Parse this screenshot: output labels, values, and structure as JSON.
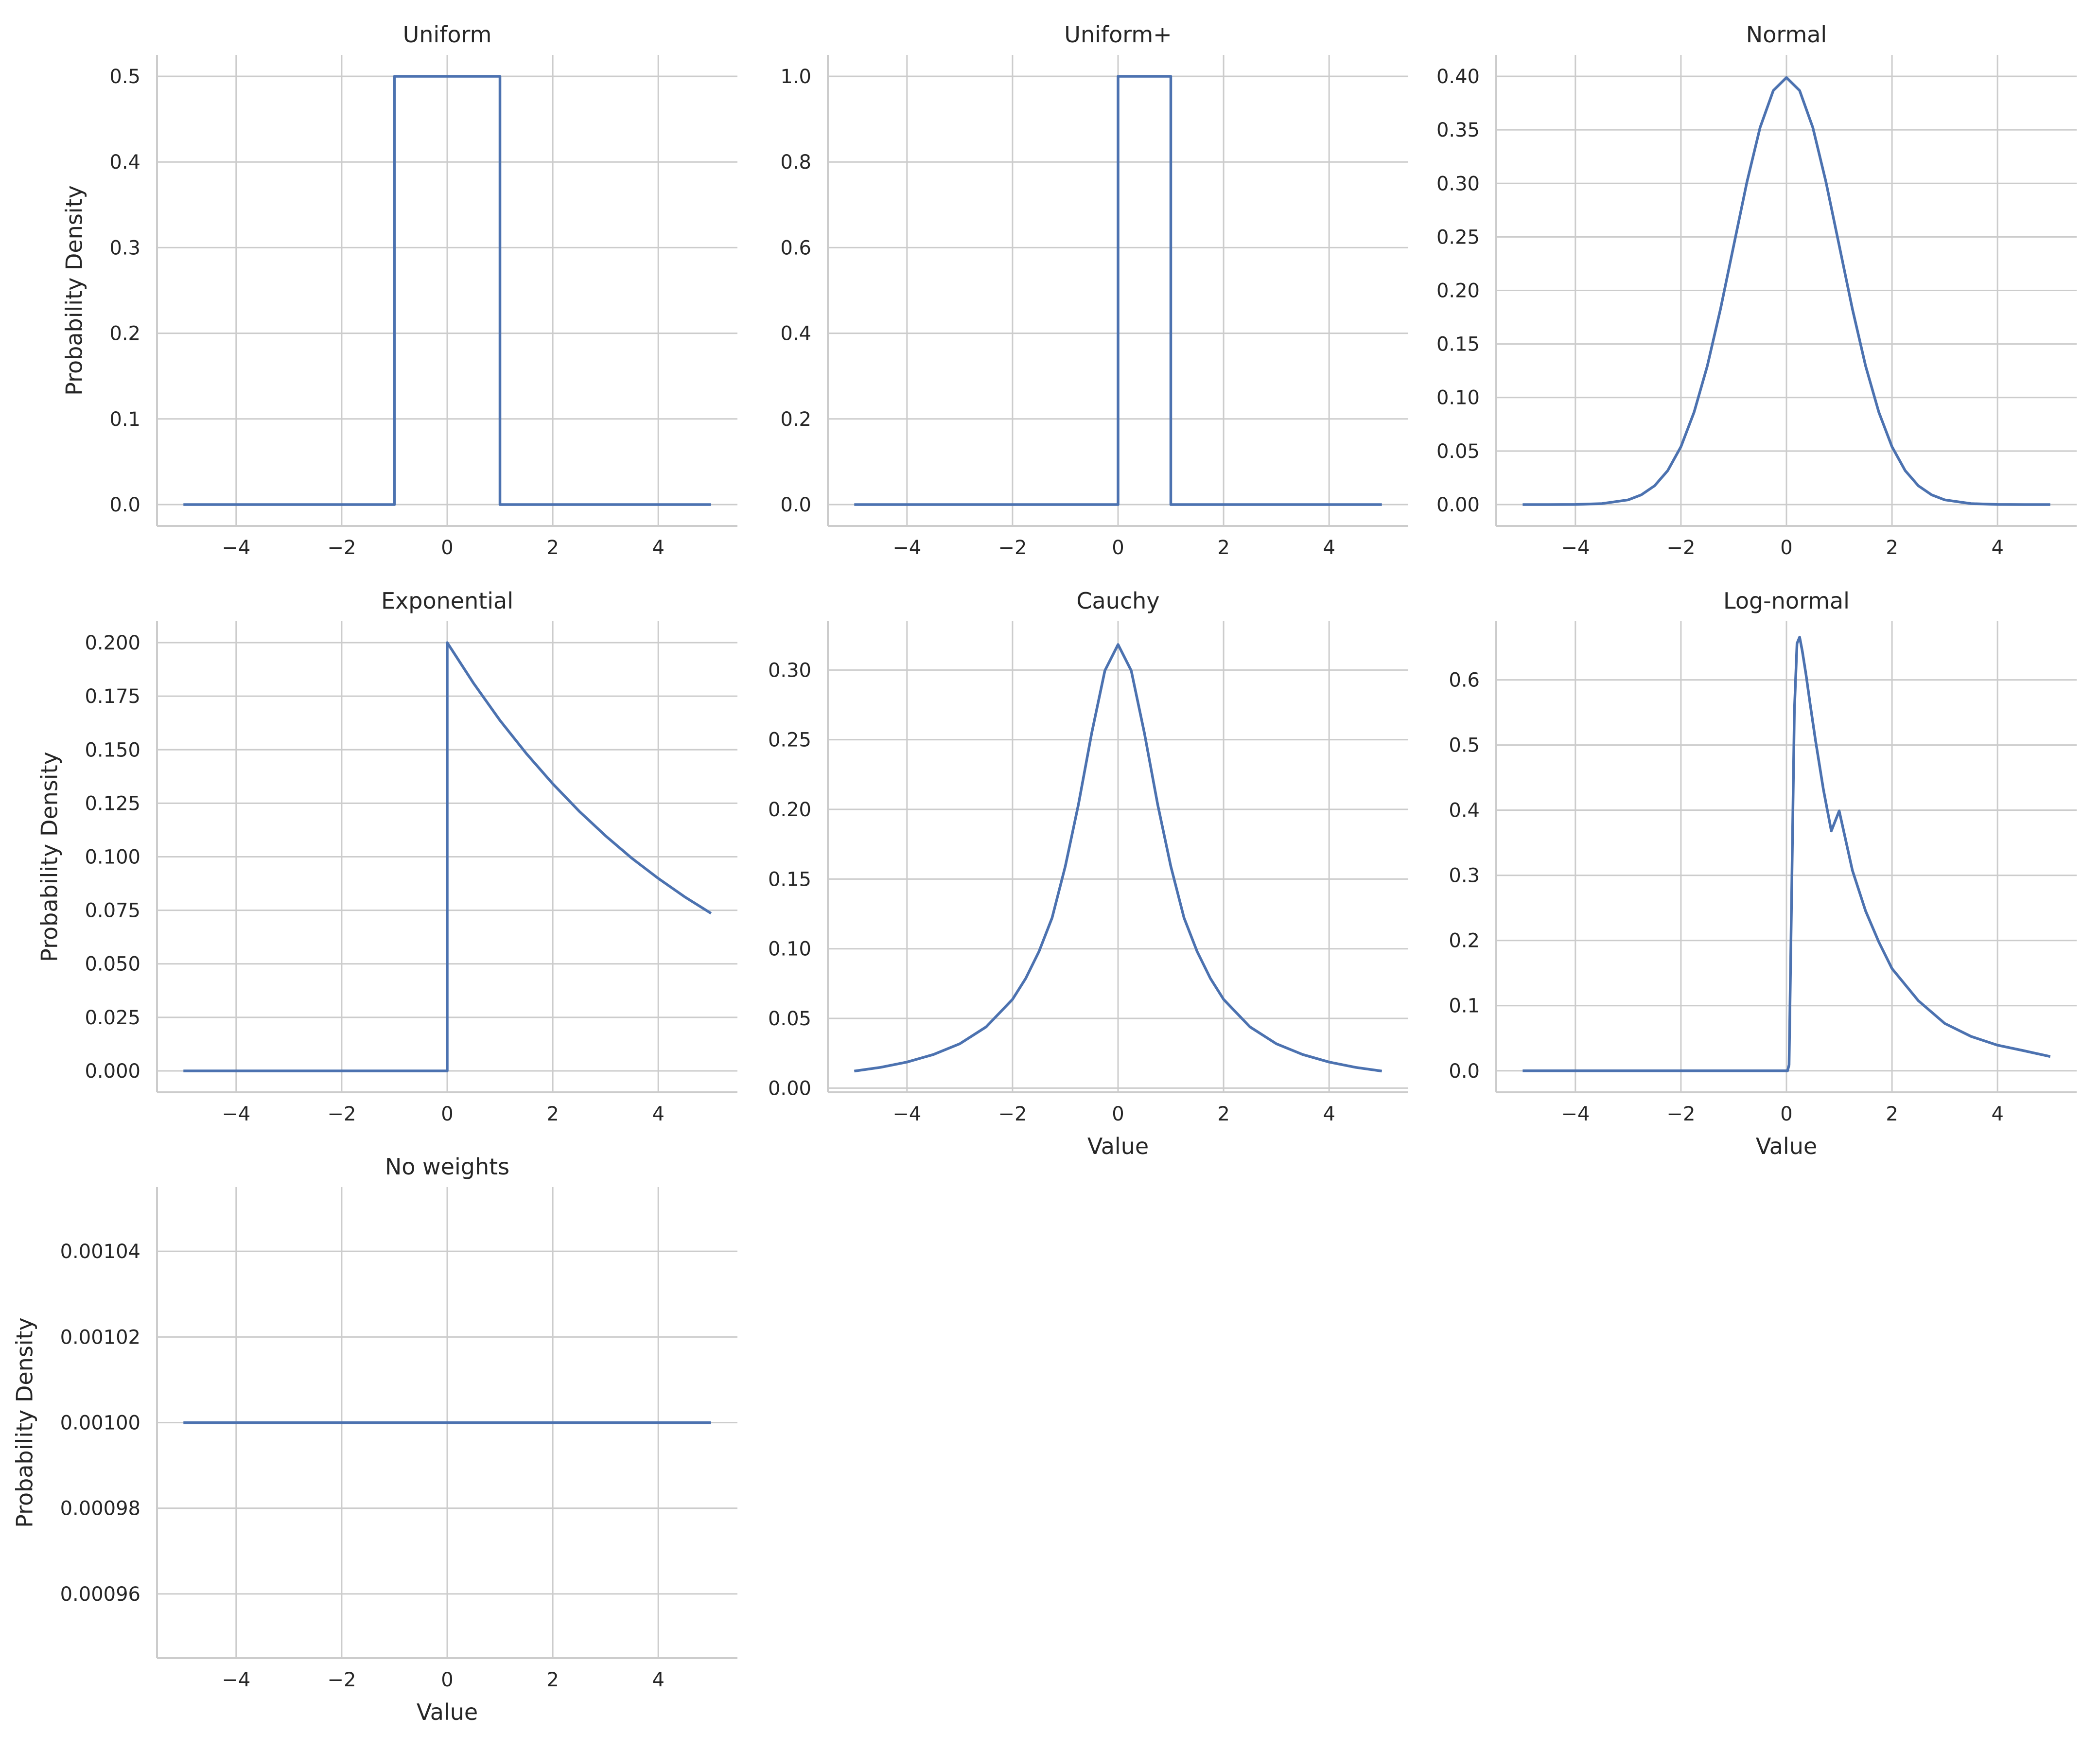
{
  "figure": {
    "line_color": "#4c72b0",
    "grid_color": "#cccccc",
    "background": "#ffffff"
  },
  "chart_data": [
    {
      "type": "line",
      "title": "Uniform",
      "xlabel": "",
      "ylabel": "Probability Density",
      "xlim": [
        -5.5,
        5.5
      ],
      "ylim": [
        -0.025,
        0.525
      ],
      "xticks": [
        -4,
        -2,
        0,
        2,
        4
      ],
      "xticklabels": [
        "−4",
        "−2",
        "0",
        "2",
        "4"
      ],
      "yticks": [
        0.0,
        0.1,
        0.2,
        0.3,
        0.4,
        0.5
      ],
      "yticklabels": [
        "0.0",
        "0.1",
        "0.2",
        "0.3",
        "0.4",
        "0.5"
      ],
      "grid": true,
      "series": [
        {
          "x": [
            -5,
            -1,
            -1,
            1,
            1,
            5
          ],
          "y": [
            0,
            0,
            0.5,
            0.5,
            0,
            0
          ]
        }
      ]
    },
    {
      "type": "line",
      "title": "Uniform+",
      "xlabel": "",
      "ylabel": "",
      "xlim": [
        -5.5,
        5.5
      ],
      "ylim": [
        -0.05,
        1.05
      ],
      "xticks": [
        -4,
        -2,
        0,
        2,
        4
      ],
      "xticklabels": [
        "−4",
        "−2",
        "0",
        "2",
        "4"
      ],
      "yticks": [
        0.0,
        0.2,
        0.4,
        0.6,
        0.8,
        1.0
      ],
      "yticklabels": [
        "0.0",
        "0.2",
        "0.4",
        "0.6",
        "0.8",
        "1.0"
      ],
      "grid": true,
      "series": [
        {
          "x": [
            -5,
            0,
            0,
            1,
            1,
            5
          ],
          "y": [
            0,
            0,
            1.0,
            1.0,
            0,
            0
          ]
        }
      ]
    },
    {
      "type": "line",
      "title": "Normal",
      "xlabel": "",
      "ylabel": "",
      "xlim": [
        -5.5,
        5.5
      ],
      "ylim": [
        -0.02,
        0.42
      ],
      "xticks": [
        -4,
        -2,
        0,
        2,
        4
      ],
      "xticklabels": [
        "−4",
        "−2",
        "0",
        "2",
        "4"
      ],
      "yticks": [
        0.0,
        0.05,
        0.1,
        0.15,
        0.2,
        0.25,
        0.3,
        0.35,
        0.4
      ],
      "yticklabels": [
        "0.00",
        "0.05",
        "0.10",
        "0.15",
        "0.20",
        "0.25",
        "0.30",
        "0.35",
        "0.40"
      ],
      "grid": true,
      "series": [
        {
          "x": [
            -5,
            -4.5,
            -4,
            -3.5,
            -3,
            -2.75,
            -2.5,
            -2.25,
            -2,
            -1.75,
            -1.5,
            -1.25,
            -1,
            -0.75,
            -0.5,
            -0.25,
            0,
            0.25,
            0.5,
            0.75,
            1,
            1.25,
            1.5,
            1.75,
            2,
            2.25,
            2.5,
            2.75,
            3,
            3.5,
            4,
            4.5,
            5
          ],
          "y": [
            0.0,
            0.0,
            0.0001,
            0.0009,
            0.0044,
            0.0091,
            0.0175,
            0.0317,
            0.054,
            0.0863,
            0.1295,
            0.1826,
            0.242,
            0.3011,
            0.3521,
            0.3867,
            0.3989,
            0.3867,
            0.3521,
            0.3011,
            0.242,
            0.1826,
            0.1295,
            0.0863,
            0.054,
            0.0317,
            0.0175,
            0.0091,
            0.0044,
            0.0009,
            0.0001,
            0.0,
            0.0
          ]
        }
      ]
    },
    {
      "type": "line",
      "title": "Exponential",
      "xlabel": "",
      "ylabel": "Probability Density",
      "xlim": [
        -5.5,
        5.5
      ],
      "ylim": [
        -0.01,
        0.21
      ],
      "xticks": [
        -4,
        -2,
        0,
        2,
        4
      ],
      "xticklabels": [
        "−4",
        "−2",
        "0",
        "2",
        "4"
      ],
      "yticks": [
        0.0,
        0.025,
        0.05,
        0.075,
        0.1,
        0.125,
        0.15,
        0.175,
        0.2
      ],
      "yticklabels": [
        "0.000",
        "0.025",
        "0.050",
        "0.075",
        "0.100",
        "0.125",
        "0.150",
        "0.175",
        "0.200"
      ],
      "grid": true,
      "series": [
        {
          "x": [
            -5,
            0,
            0,
            0.5,
            1,
            1.5,
            2,
            2.5,
            3,
            3.5,
            4,
            4.5,
            5
          ],
          "y": [
            0,
            0,
            0.2,
            0.181,
            0.1637,
            0.1482,
            0.1341,
            0.1213,
            0.1098,
            0.0993,
            0.0899,
            0.0813,
            0.0736
          ]
        }
      ]
    },
    {
      "type": "line",
      "title": "Cauchy",
      "xlabel": "Value",
      "ylabel": "",
      "xlim": [
        -5.5,
        5.5
      ],
      "ylim": [
        -0.003,
        0.335
      ],
      "xticks": [
        -4,
        -2,
        0,
        2,
        4
      ],
      "xticklabels": [
        "−4",
        "−2",
        "0",
        "2",
        "4"
      ],
      "yticks": [
        0.0,
        0.05,
        0.1,
        0.15,
        0.2,
        0.25,
        0.3
      ],
      "yticklabels": [
        "0.00",
        "0.05",
        "0.10",
        "0.15",
        "0.20",
        "0.25",
        "0.30"
      ],
      "grid": true,
      "series": [
        {
          "x": [
            -5,
            -4.5,
            -4,
            -3.5,
            -3,
            -2.5,
            -2,
            -1.75,
            -1.5,
            -1.25,
            -1,
            -0.75,
            -0.5,
            -0.25,
            0,
            0.25,
            0.5,
            0.75,
            1,
            1.25,
            1.5,
            1.75,
            2,
            2.5,
            3,
            3.5,
            4,
            4.5,
            5
          ],
          "y": [
            0.0122,
            0.0149,
            0.0187,
            0.0241,
            0.0318,
            0.0439,
            0.0637,
            0.0787,
            0.0979,
            0.1222,
            0.1592,
            0.2037,
            0.2546,
            0.2996,
            0.3183,
            0.2996,
            0.2546,
            0.2037,
            0.1592,
            0.1222,
            0.0979,
            0.0787,
            0.0637,
            0.0439,
            0.0318,
            0.0241,
            0.0187,
            0.0149,
            0.0122
          ]
        }
      ]
    },
    {
      "type": "line",
      "title": "Log-normal",
      "xlabel": "Value",
      "ylabel": "",
      "xlim": [
        -5.5,
        5.5
      ],
      "ylim": [
        -0.033,
        0.69
      ],
      "xticks": [
        -4,
        -2,
        0,
        2,
        4
      ],
      "xticklabels": [
        "−4",
        "−2",
        "0",
        "2",
        "4"
      ],
      "yticks": [
        0.0,
        0.1,
        0.2,
        0.3,
        0.4,
        0.5,
        0.6
      ],
      "yticklabels": [
        "0.0",
        "0.1",
        "0.2",
        "0.3",
        "0.4",
        "0.5",
        "0.6"
      ],
      "grid": true,
      "series": [
        {
          "x": [
            -5,
            0,
            0.02,
            0.05,
            0.1,
            0.15,
            0.2,
            0.25,
            0.3,
            0.37,
            0.45,
            0.55,
            0.7,
            0.85,
            1,
            1.25,
            1.5,
            1.75,
            2,
            2.5,
            3,
            3.5,
            4,
            4.5,
            5
          ],
          "y": [
            0,
            0,
            0.0,
            0.0092,
            0.2815,
            0.5525,
            0.6559,
            0.6657,
            0.6442,
            0.6083,
            0.5626,
            0.5074,
            0.4317,
            0.3681,
            0.3989,
            0.3075,
            0.2453,
            0.1977,
            0.1569,
            0.1075,
            0.0727,
            0.0527,
            0.0393,
            0.0308,
            0.0219
          ]
        }
      ]
    },
    {
      "type": "line",
      "title": "No weights",
      "xlabel": "Value",
      "ylabel": "Probability Density",
      "xlim": [
        -5.5,
        5.5
      ],
      "ylim": [
        0.000945,
        0.001055
      ],
      "xticks": [
        -4,
        -2,
        0,
        2,
        4
      ],
      "xticklabels": [
        "−4",
        "−2",
        "0",
        "2",
        "4"
      ],
      "yticks": [
        0.00096,
        0.00098,
        0.001,
        0.00102,
        0.00104
      ],
      "yticklabels": [
        "0.00096",
        "0.00098",
        "0.00100",
        "0.00102",
        "0.00104"
      ],
      "grid": true,
      "series": [
        {
          "x": [
            -5,
            5
          ],
          "y": [
            0.001,
            0.001
          ]
        }
      ]
    }
  ]
}
